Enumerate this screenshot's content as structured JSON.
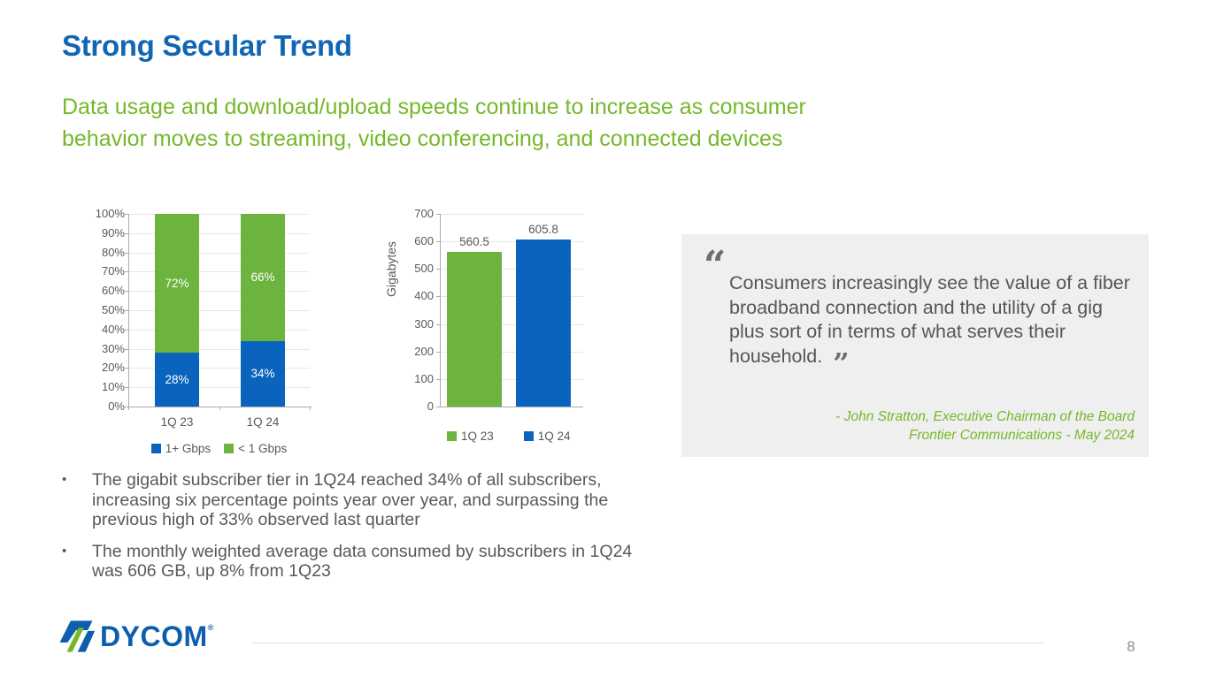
{
  "slide": {
    "title": "Strong Secular Trend",
    "subtitle_lines": [
      "Data usage and download/upload speeds continue to increase as consumer",
      "behavior moves to streaming, video conferencing, and connected devices"
    ]
  },
  "colors": {
    "title_blue": "#1066B3",
    "accent_green": "#76B82A",
    "chart_green": "#6CB33F",
    "chart_blue": "#0A64BE",
    "text_gray": "#58595B",
    "quote_bg": "#EFEFEF"
  },
  "chart_data": [
    {
      "type": "bar",
      "subtype": "stacked-100-percent",
      "categories": [
        "1Q 23",
        "1Q 24"
      ],
      "series": [
        {
          "name": "1+ Gbps",
          "color": "#0A64BE",
          "values": [
            28,
            34
          ],
          "labels": [
            "28%",
            "34%"
          ]
        },
        {
          "name": "< 1 Gbps",
          "color": "#6CB33F",
          "values": [
            72,
            66
          ],
          "labels": [
            "72%",
            "66%"
          ]
        }
      ],
      "ylabel": "",
      "ylim": [
        0,
        100
      ],
      "yticks": [
        "100%",
        "90%",
        "80%",
        "70%",
        "60%",
        "50%",
        "40%",
        "30%",
        "20%",
        "10%",
        "0%"
      ],
      "grid": true,
      "legend": [
        {
          "label": "1+ Gbps",
          "color": "#0A64BE"
        },
        {
          "label": "< 1 Gbps",
          "color": "#6CB33F"
        }
      ],
      "legend_position": "bottom"
    },
    {
      "type": "bar",
      "subtype": "simple",
      "categories": [
        "1Q 23",
        "1Q 24"
      ],
      "values": [
        560.5,
        605.8
      ],
      "value_labels": [
        "560.5",
        "605.8"
      ],
      "bar_colors": [
        "#6CB33F",
        "#0A64BE"
      ],
      "ylabel": "Gigabytes",
      "ylim": [
        0,
        700
      ],
      "yticks": [
        "700",
        "600",
        "500",
        "400",
        "300",
        "200",
        "100",
        "0"
      ],
      "grid": true,
      "legend": [
        {
          "label": "1Q 23",
          "color": "#6CB33F"
        },
        {
          "label": "1Q 24",
          "color": "#0A64BE"
        }
      ],
      "legend_position": "bottom"
    }
  ],
  "quote": {
    "open_mark": "“",
    "text": "Consumers increasingly see the value of a fiber broadband connection and the utility of a gig plus sort of in terms of what serves their household.",
    "close_mark": "”",
    "attribution_line1": "-  John Stratton, Executive Chairman of the Board",
    "attribution_line2": "Frontier Communications - May 2024"
  },
  "bullets": {
    "marker": "•",
    "items": [
      "The gigabit subscriber tier in 1Q24 reached 34% of all subscribers, increasing six percentage points year over year, and surpassing the previous high of 33% observed last quarter",
      "The monthly weighted average data consumed by subscribers in 1Q24 was 606 GB, up 8% from 1Q23"
    ]
  },
  "footer": {
    "logo_text": "DYCOM",
    "reg_mark": "®",
    "page_number": "8"
  }
}
